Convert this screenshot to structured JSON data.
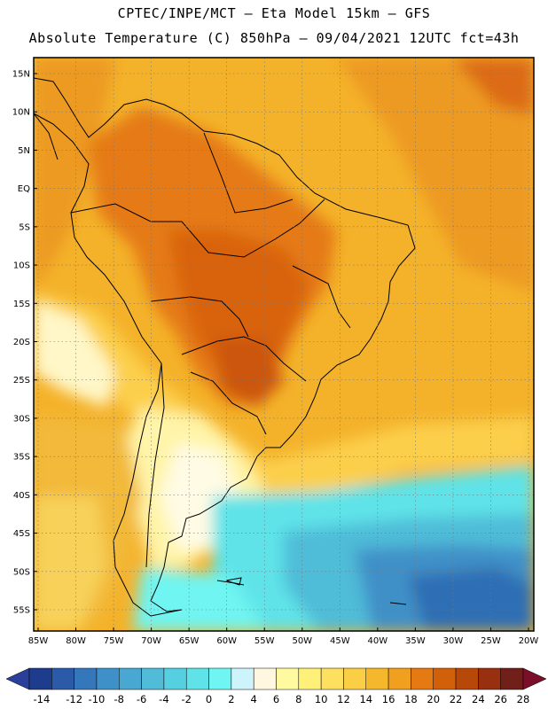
{
  "header": {
    "line1": "CPTEC/INPE/MCT –  Eta Model 15km – GFS",
    "line2": "Absolute Temperature (C) 850hPa – 09/04/2021 12UTC fct=43h"
  },
  "map": {
    "lat_labels": [
      "15N",
      "10N",
      "5N",
      "EQ",
      "5S",
      "10S",
      "15S",
      "20S",
      "25S",
      "30S",
      "35S",
      "40S",
      "45S",
      "50S",
      "55S"
    ],
    "lon_labels": [
      "85W",
      "80W",
      "75W",
      "70W",
      "65W",
      "60W",
      "55W",
      "50W",
      "45W",
      "40W",
      "35W",
      "30W",
      "25W",
      "20W"
    ]
  },
  "colorbar": {
    "tick_labels": [
      "-14",
      "-12",
      "-10",
      "-8",
      "-6",
      "-4",
      "-2",
      "0",
      "2",
      "4",
      "6",
      "8",
      "10",
      "12",
      "14",
      "16",
      "18",
      "20",
      "22",
      "24",
      "26",
      "28"
    ],
    "colors": [
      "#1e3c8c",
      "#2a5aa8",
      "#3577bb",
      "#3f90c8",
      "#48a8d2",
      "#50bcd8",
      "#56cfe0",
      "#5fe3e8",
      "#6ff5f2",
      "#cdf3fb",
      "#fff7e0",
      "#fffaa0",
      "#fff07a",
      "#fee060",
      "#fbcf45",
      "#f5b82d",
      "#f0a01e",
      "#e57a12",
      "#d2600a",
      "#b84808",
      "#983010",
      "#702018"
    ],
    "min_arrow_color": "#2a3f9a",
    "max_arrow_color": "#7a0f2a"
  }
}
